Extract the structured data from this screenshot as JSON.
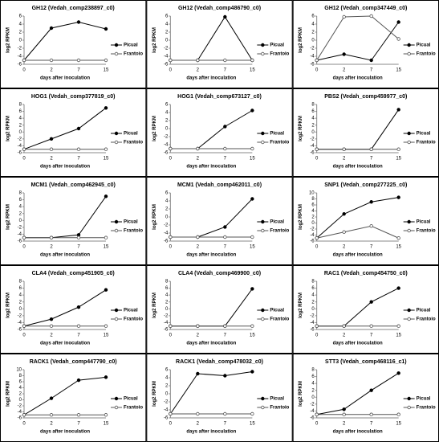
{
  "chart_data": [
    {
      "type": "line",
      "title": "GH12 (Vedah_comp238897_c0)",
      "xlabel": "days after inoculation",
      "ylabel": "log2 RPKM",
      "categories": [
        "0",
        "2",
        "7",
        "15"
      ],
      "ylim": [
        -6,
        6
      ],
      "yticks": [
        -6,
        -4,
        -2,
        0,
        2,
        4,
        6
      ],
      "series": [
        {
          "name": "Picual",
          "color": "#000000",
          "marker_fill": "#000000",
          "values": [
            -5,
            3,
            4.5,
            2.8
          ]
        },
        {
          "name": "Frantoio",
          "color": "#555555",
          "marker_fill": "#ffffff",
          "values": [
            -5,
            -5,
            -5,
            -5
          ]
        }
      ]
    },
    {
      "type": "line",
      "title": "GH12 (Vedah_comp486790_c0)",
      "xlabel": "days after inoculation",
      "ylabel": "log2 RPKM",
      "categories": [
        "0",
        "2",
        "7",
        "15"
      ],
      "ylim": [
        -6,
        6
      ],
      "yticks": [
        -6,
        -4,
        -2,
        0,
        2,
        4,
        6
      ],
      "series": [
        {
          "name": "Picual",
          "color": "#000000",
          "marker_fill": "#000000",
          "values": [
            -5,
            -5,
            5.8,
            -5
          ]
        },
        {
          "name": "Frantoio",
          "color": "#555555",
          "marker_fill": "#ffffff",
          "values": [
            -5,
            -5,
            -5,
            -5
          ]
        }
      ]
    },
    {
      "type": "line",
      "title": "GH12 (Vedah_comp347449_c0)",
      "xlabel": "days after inoculation",
      "ylabel": "log2 RPKM",
      "categories": [
        "0",
        "2",
        "7",
        "15"
      ],
      "ylim": [
        -6,
        6
      ],
      "yticks": [
        -6,
        -4,
        -2,
        0,
        2,
        4,
        6
      ],
      "series": [
        {
          "name": "Picual",
          "color": "#000000",
          "marker_fill": "#000000",
          "values": [
            -5,
            -3.5,
            -5,
            4.5
          ]
        },
        {
          "name": "Frantoio",
          "color": "#555555",
          "marker_fill": "#ffffff",
          "values": [
            -5,
            5.8,
            6,
            0.3
          ]
        }
      ]
    },
    {
      "type": "line",
      "title": "HOG1 (Vedah_comp377819_c0)",
      "xlabel": "days after inoculation",
      "ylabel": "log2 RPKM",
      "categories": [
        "0",
        "2",
        "7",
        "15"
      ],
      "ylim": [
        -6,
        8
      ],
      "yticks": [
        -6,
        -4,
        -2,
        0,
        2,
        4,
        6,
        8
      ],
      "series": [
        {
          "name": "Picual",
          "color": "#000000",
          "marker_fill": "#000000",
          "values": [
            -5,
            -2,
            1,
            7
          ]
        },
        {
          "name": "Frantoio",
          "color": "#555555",
          "marker_fill": "#ffffff",
          "values": [
            -5,
            -5,
            -5,
            -5
          ]
        }
      ]
    },
    {
      "type": "line",
      "title": "HOG1 (Vedah_comp673127_c0)",
      "xlabel": "days after inoculation",
      "ylabel": "log2 RPKM",
      "categories": [
        "0",
        "2",
        "7",
        "15"
      ],
      "ylim": [
        -6,
        6
      ],
      "yticks": [
        -6,
        -4,
        -2,
        0,
        2,
        4,
        6
      ],
      "series": [
        {
          "name": "Picual",
          "color": "#000000",
          "marker_fill": "#000000",
          "values": [
            -5,
            -5,
            0.5,
            4.5
          ]
        },
        {
          "name": "Frantoio",
          "color": "#555555",
          "marker_fill": "#ffffff",
          "values": [
            -5,
            -5,
            -5,
            -5
          ]
        }
      ]
    },
    {
      "type": "line",
      "title": "PBS2 (Vedah_comp459977_c0)",
      "xlabel": "days after inoculation",
      "ylabel": "log2 RPKM",
      "categories": [
        "0",
        "2",
        "7",
        "15"
      ],
      "ylim": [
        -6,
        8
      ],
      "yticks": [
        -6,
        -4,
        -2,
        0,
        2,
        4,
        6,
        8
      ],
      "series": [
        {
          "name": "Picual",
          "color": "#000000",
          "marker_fill": "#000000",
          "values": [
            -5,
            -5,
            -5,
            6.5
          ]
        },
        {
          "name": "Frantoio",
          "color": "#555555",
          "marker_fill": "#ffffff",
          "values": [
            -5,
            -5,
            -5,
            -5
          ]
        }
      ]
    },
    {
      "type": "line",
      "title": "MCM1 (Vedah_comp462945_c0)",
      "xlabel": "days after inoculation",
      "ylabel": "log2 RPKM",
      "categories": [
        "0",
        "2",
        "7",
        "15"
      ],
      "ylim": [
        -6,
        8
      ],
      "yticks": [
        -6,
        -4,
        -2,
        0,
        2,
        4,
        6,
        8
      ],
      "series": [
        {
          "name": "Picual",
          "color": "#000000",
          "marker_fill": "#000000",
          "values": [
            -5,
            -5,
            -4.2,
            7
          ]
        },
        {
          "name": "Frantoio",
          "color": "#555555",
          "marker_fill": "#ffffff",
          "values": [
            -5,
            -5,
            -5,
            -5
          ]
        }
      ]
    },
    {
      "type": "line",
      "title": "MCM1 (Vedah_comp462011_c0)",
      "xlabel": "days after inoculation",
      "ylabel": "log2 RPKM",
      "categories": [
        "0",
        "2",
        "7",
        "15"
      ],
      "ylim": [
        -6,
        6
      ],
      "yticks": [
        -6,
        -4,
        -2,
        0,
        2,
        4,
        6
      ],
      "series": [
        {
          "name": "Picual",
          "color": "#000000",
          "marker_fill": "#000000",
          "values": [
            -5,
            -5,
            -2.5,
            4.5
          ]
        },
        {
          "name": "Frantoio",
          "color": "#555555",
          "marker_fill": "#ffffff",
          "values": [
            -5,
            -5,
            -5,
            -5
          ]
        }
      ]
    },
    {
      "type": "line",
      "title": "SNP1 (Vedah_comp277225_c0)",
      "xlabel": "days after inoculation",
      "ylabel": "log2 RPKM",
      "categories": [
        "0",
        "2",
        "7",
        "15"
      ],
      "ylim": [
        -6,
        10
      ],
      "yticks": [
        -6,
        -4,
        -2,
        0,
        2,
        4,
        6,
        8,
        10
      ],
      "series": [
        {
          "name": "Picual",
          "color": "#000000",
          "marker_fill": "#000000",
          "values": [
            -5,
            3,
            7,
            8.5
          ]
        },
        {
          "name": "Frantoio",
          "color": "#555555",
          "marker_fill": "#ffffff",
          "values": [
            -5,
            -3,
            -1,
            -5
          ]
        }
      ]
    },
    {
      "type": "line",
      "title": "CLA4 (Vedah_comp451905_c0)",
      "xlabel": "days after inoculation",
      "ylabel": "log2 RPKM",
      "categories": [
        "0",
        "2",
        "7",
        "15"
      ],
      "ylim": [
        -6,
        8
      ],
      "yticks": [
        -6,
        -4,
        -2,
        0,
        2,
        4,
        6,
        8
      ],
      "series": [
        {
          "name": "Picual",
          "color": "#000000",
          "marker_fill": "#000000",
          "values": [
            -5,
            -3,
            0.5,
            5.5
          ]
        },
        {
          "name": "Frantoio",
          "color": "#555555",
          "marker_fill": "#ffffff",
          "values": [
            -5,
            -5,
            -5,
            -5
          ]
        }
      ]
    },
    {
      "type": "line",
      "title": "CLA4 (Vedah_comp469900_c0)",
      "xlabel": "days after inoculation",
      "ylabel": "log2 RPKM",
      "categories": [
        "0",
        "2",
        "7",
        "15"
      ],
      "ylim": [
        -6,
        8
      ],
      "yticks": [
        -6,
        -4,
        -2,
        0,
        2,
        4,
        6,
        8
      ],
      "series": [
        {
          "name": "Picual",
          "color": "#000000",
          "marker_fill": "#000000",
          "values": [
            -5,
            -5,
            -5,
            5.8
          ]
        },
        {
          "name": "Frantoio",
          "color": "#555555",
          "marker_fill": "#ffffff",
          "values": [
            -5,
            -5,
            -5,
            -5
          ]
        }
      ]
    },
    {
      "type": "line",
      "title": "RAC1 (Vedah_comp454750_c0)",
      "xlabel": "days after inoculation",
      "ylabel": "log2 RPKM",
      "categories": [
        "0",
        "2",
        "7",
        "15"
      ],
      "ylim": [
        -6,
        8
      ],
      "yticks": [
        -6,
        -4,
        -2,
        0,
        2,
        4,
        6,
        8
      ],
      "series": [
        {
          "name": "Picual",
          "color": "#000000",
          "marker_fill": "#000000",
          "values": [
            -5,
            -5,
            2,
            6
          ]
        },
        {
          "name": "Frantoio",
          "color": "#555555",
          "marker_fill": "#ffffff",
          "values": [
            -5,
            -5,
            -5,
            -5
          ]
        }
      ]
    },
    {
      "type": "line",
      "title": "RACK1 (Vedah_comp447790_c0)",
      "xlabel": "days after inoculation",
      "ylabel": "log2 RPKM",
      "categories": [
        "0",
        "2",
        "7",
        "15"
      ],
      "ylim": [
        -6,
        10
      ],
      "yticks": [
        -6,
        -4,
        -2,
        0,
        2,
        4,
        6,
        8,
        10
      ],
      "series": [
        {
          "name": "Picual",
          "color": "#000000",
          "marker_fill": "#000000",
          "values": [
            -5,
            0.5,
            6.5,
            7.5
          ]
        },
        {
          "name": "Frantoio",
          "color": "#555555",
          "marker_fill": "#ffffff",
          "values": [
            -5,
            -5,
            -5,
            -5
          ]
        }
      ]
    },
    {
      "type": "line",
      "title": "RACK1 (Vedah_comp478032_c0)",
      "xlabel": "days after inoculation",
      "ylabel": "log2 RPKM",
      "categories": [
        "0",
        "2",
        "7",
        "15"
      ],
      "ylim": [
        -6,
        6
      ],
      "yticks": [
        -6,
        -4,
        -2,
        0,
        2,
        4,
        6
      ],
      "series": [
        {
          "name": "Picual",
          "color": "#000000",
          "marker_fill": "#000000",
          "values": [
            -5,
            5,
            4.5,
            5.5
          ]
        },
        {
          "name": "Frantoio",
          "color": "#555555",
          "marker_fill": "#ffffff",
          "values": [
            -5,
            -5,
            -5,
            -5
          ]
        }
      ]
    },
    {
      "type": "line",
      "title": "STT3 (Vedah_comp468116_c1)",
      "xlabel": "days after inoculation",
      "ylabel": "log2 RPKM",
      "categories": [
        "0",
        "2",
        "7",
        "15"
      ],
      "ylim": [
        -6,
        8
      ],
      "yticks": [
        -6,
        -4,
        -2,
        0,
        2,
        4,
        6,
        8
      ],
      "series": [
        {
          "name": "Picual",
          "color": "#000000",
          "marker_fill": "#000000",
          "values": [
            -5,
            -3.5,
            2,
            7
          ]
        },
        {
          "name": "Frantoio",
          "color": "#555555",
          "marker_fill": "#ffffff",
          "values": [
            -5,
            -5,
            -5,
            -5
          ]
        }
      ]
    }
  ]
}
